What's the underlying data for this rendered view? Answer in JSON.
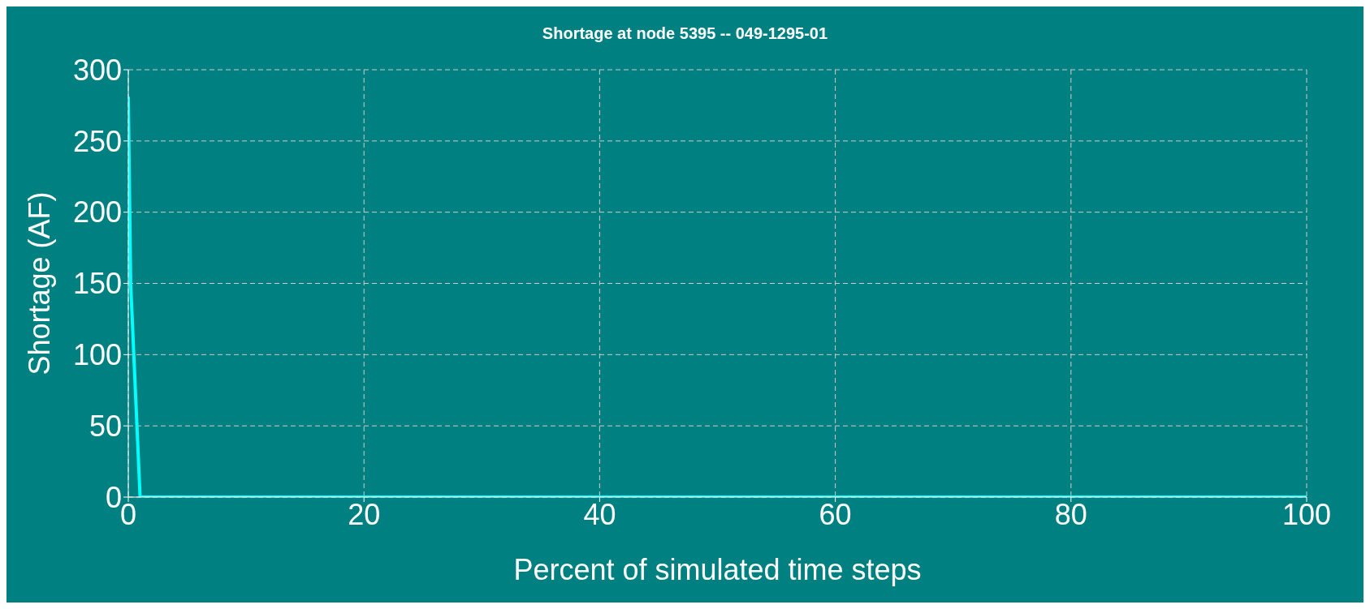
{
  "chart_data": {
    "type": "line",
    "title": "Shortage at node 5395 -- 049-1295-01",
    "xlabel": "Percent of simulated time steps",
    "ylabel": "Shortage (AF)",
    "x": [
      0,
      0.2,
      1,
      100
    ],
    "series": [
      {
        "color": "#00ffff",
        "values": [
          281,
          150,
          0,
          0
        ]
      }
    ],
    "xlim": [
      0,
      100
    ],
    "xticks": [
      0,
      20,
      40,
      60,
      80,
      100
    ],
    "ylim": [
      0,
      300
    ],
    "yticks": [
      0,
      50,
      100,
      150,
      200,
      250,
      300
    ],
    "grid": true,
    "legend": false,
    "marker": "none",
    "line_style": "solid"
  }
}
